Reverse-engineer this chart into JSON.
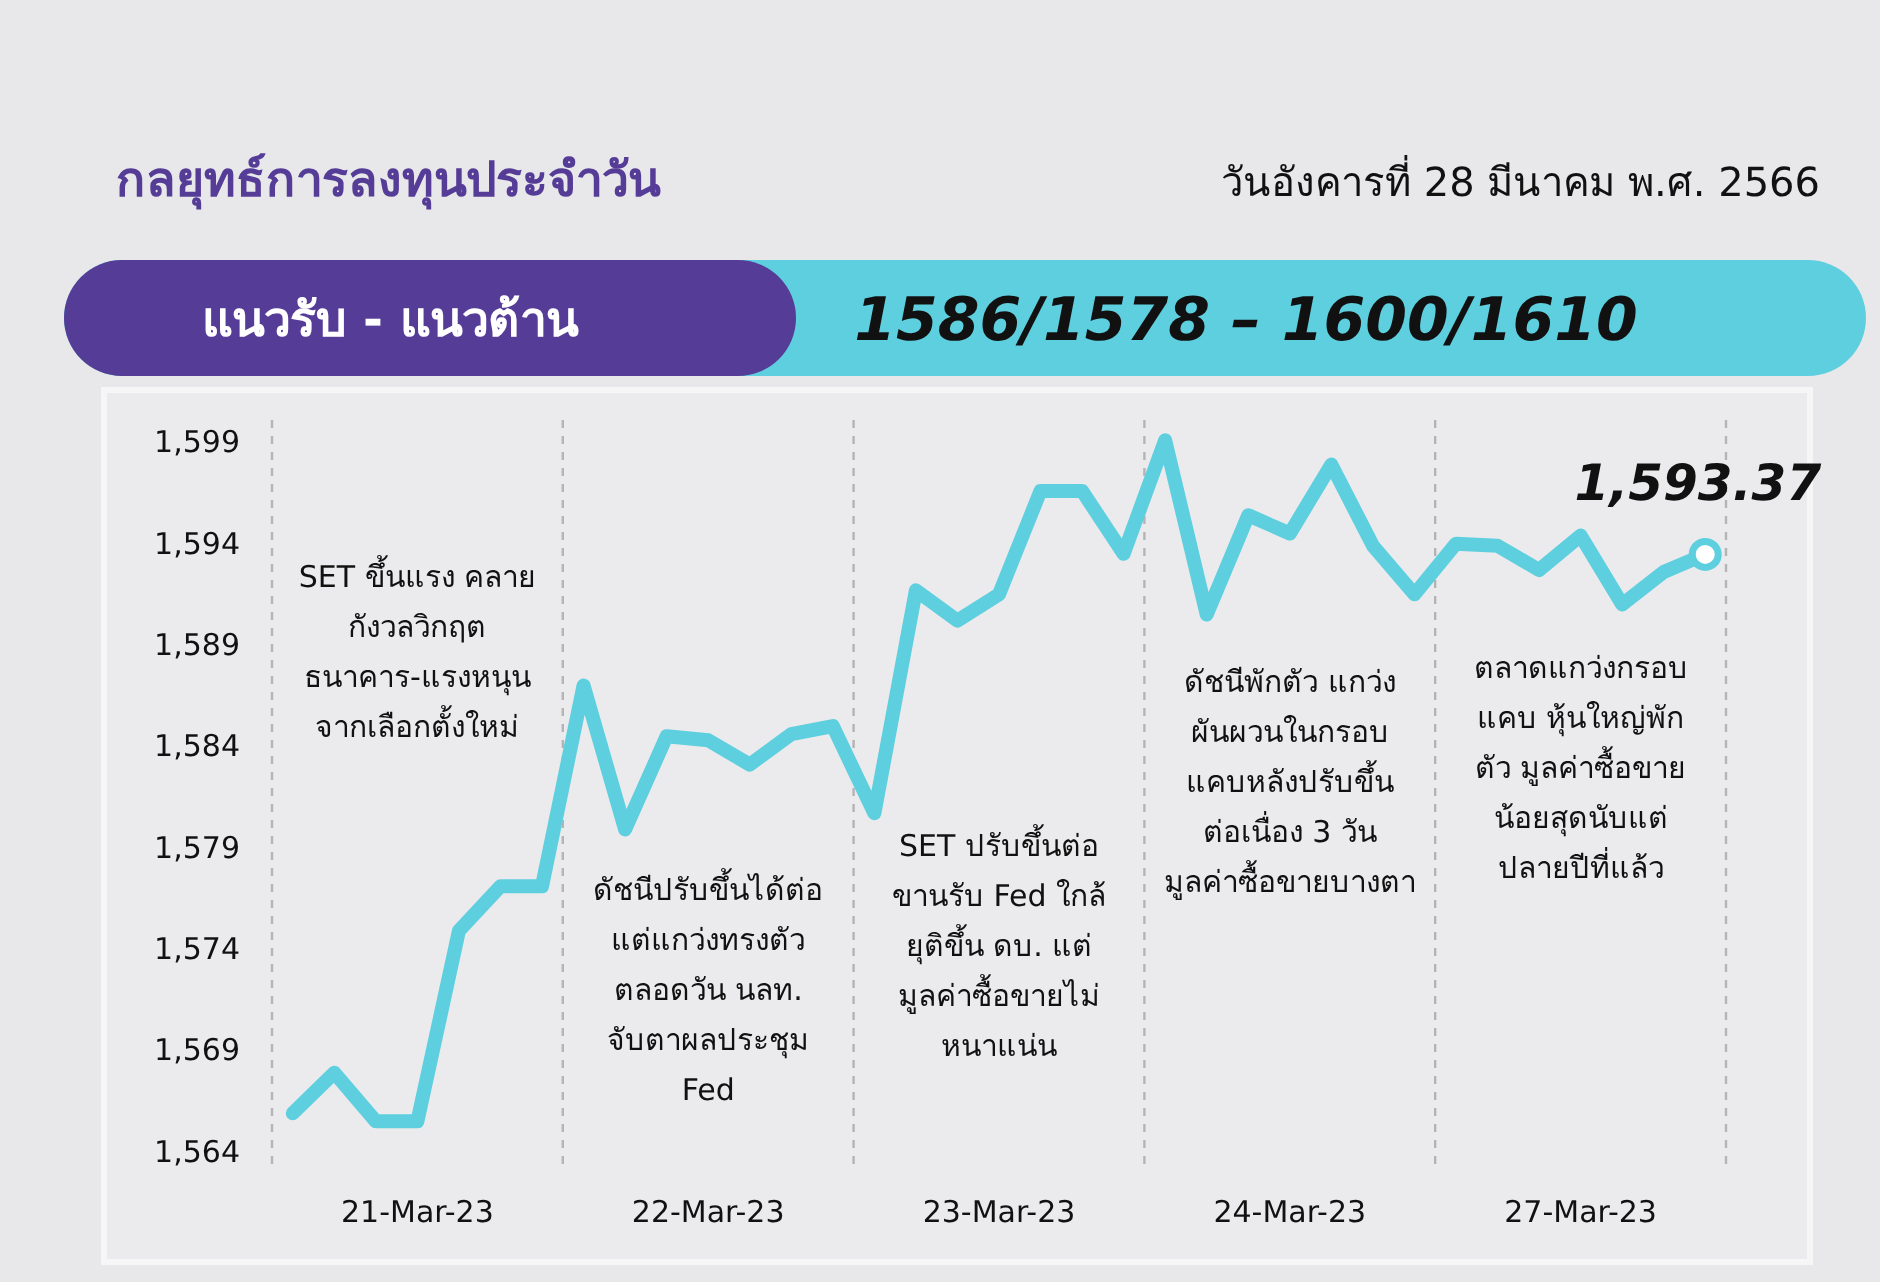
{
  "chart_data": {
    "type": "line",
    "title": "กลยุทธ์การลงทุนประจำวัน",
    "subtitle": "วันอังคารที่ 28 มีนาคม พ.ศ. 2566",
    "categories": [
      null,
      null,
      null,
      "21-Mar-23",
      null,
      null,
      null,
      null,
      null,
      null,
      "22-Mar-23",
      null,
      null,
      null,
      null,
      null,
      null,
      "23-Mar-23",
      null,
      null,
      null,
      null,
      null,
      null,
      "24-Mar-23",
      null,
      null,
      null,
      null,
      null,
      null,
      "27-Mar-23",
      null,
      null,
      null
    ],
    "series": [
      {
        "color": "#5ecfdf",
        "values": [
          1565.8,
          1567.8,
          1565.4,
          1565.4,
          1574.8,
          1577.0,
          1577.0,
          1586.9,
          1579.8,
          1584.4,
          1584.2,
          1583.0,
          1584.5,
          1584.9,
          1580.6,
          1591.6,
          1590.1,
          1591.4,
          1596.5,
          1596.5,
          1593.4,
          1599.0,
          1590.4,
          1595.3,
          1594.4,
          1597.8,
          1593.8,
          1591.4,
          1593.9,
          1593.8,
          1592.6,
          1594.3,
          1590.9,
          1592.5,
          1593.37
        ],
        "value_labels": [
          null,
          null,
          null,
          null,
          null,
          null,
          null,
          null,
          null,
          null,
          null,
          null,
          null,
          null,
          null,
          null,
          null,
          null,
          null,
          null,
          null,
          null,
          null,
          null,
          null,
          null,
          null,
          null,
          null,
          null,
          null,
          null,
          null,
          null,
          "1,593.37"
        ]
      }
    ],
    "ylim": [
      1563,
      1600
    ],
    "yticks": [
      {
        "value": 1564,
        "label": "1,564"
      },
      {
        "value": 1569,
        "label": "1,569"
      },
      {
        "value": 1574,
        "label": "1,574"
      },
      {
        "value": 1579,
        "label": "1,579"
      },
      {
        "value": 1584,
        "label": "1,584"
      },
      {
        "value": 1589,
        "label": "1,589"
      },
      {
        "value": 1594,
        "label": "1,594"
      },
      {
        "value": 1599,
        "label": "1,599"
      }
    ],
    "annotations": [
      "แนวรับ - แนวต้าน",
      "1586/1578 – 1600/1610",
      "SET ขึ้นแรง คลาย\nกังวลวิกฤต\nธนาคาร-แรงหนุน\nจากเลือกตั้งใหม่",
      "ดัชนีปรับขึ้นได้ต่อ\nแต่แกว่งทรงตัว\nตลอดวัน นลท.\nจับตาผลประชุม\nFed",
      "SET ปรับขึ้นต่อ\nขานรับ Fed ใกล้\nยุติขึ้น ดบ. แต่\nมูลค่าซื้อขายไม่\nหนาแน่น",
      "ดัชนีพักตัว แกว่ง\nผันผวนในกรอบ\nแคบหลังปรับขึ้น\nต่อเนื่อง 3 วัน\nมูลค่าซื้อขายบางตา",
      "ตลาดแกว่งกรอบ\nแคบ หุ้นใหญ่พัก\nตัว มูลค่าซื้อขาย\nน้อยสุดนับแต่\nปลายปีที่แล้ว"
    ]
  }
}
